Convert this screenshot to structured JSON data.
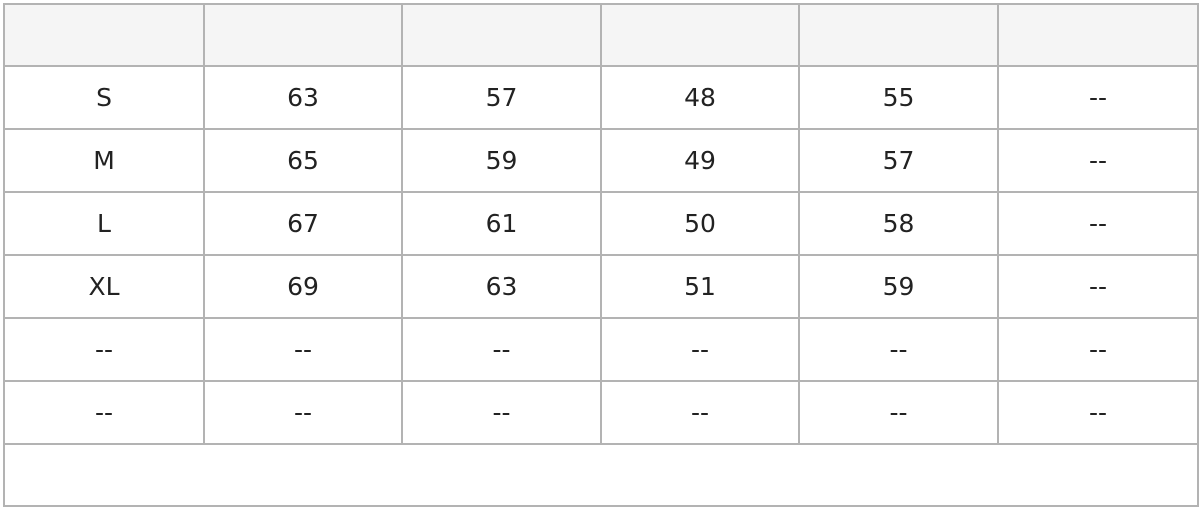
{
  "table": {
    "header": [
      "",
      "",
      "",
      "",
      "",
      ""
    ],
    "rows": [
      [
        "S",
        "63",
        "57",
        "48",
        "55",
        "--"
      ],
      [
        "M",
        "65",
        "59",
        "49",
        "57",
        "--"
      ],
      [
        "L",
        "67",
        "61",
        "50",
        "58",
        "--"
      ],
      [
        "XL",
        "69",
        "63",
        "51",
        "59",
        "--"
      ],
      [
        "--",
        "--",
        "--",
        "--",
        "--",
        "--"
      ],
      [
        "--",
        "--",
        "--",
        "--",
        "--",
        "--"
      ]
    ],
    "footer": ""
  }
}
